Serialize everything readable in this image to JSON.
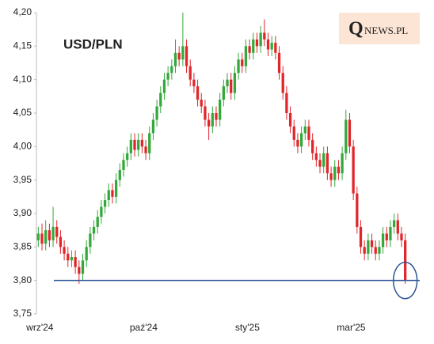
{
  "chart_data": {
    "type": "candlestick",
    "title": "USD/PLN",
    "logo": [
      "Q",
      "NEWS.PL"
    ],
    "categories": [
      "wrz'24",
      null,
      null,
      null,
      null,
      null,
      null,
      null,
      null,
      null,
      null,
      null,
      null,
      null,
      null,
      null,
      null,
      null,
      null,
      null,
      null,
      null,
      null,
      null,
      null,
      null,
      null,
      null,
      "paź'24",
      null,
      null,
      null,
      null,
      null,
      null,
      null,
      null,
      null,
      null,
      null,
      null,
      null,
      null,
      null,
      null,
      null,
      null,
      null,
      null,
      null,
      null,
      null,
      null,
      null,
      null,
      null,
      "sty'25",
      null,
      null,
      null,
      null,
      null,
      null,
      null,
      null,
      null,
      null,
      null,
      null,
      null,
      null,
      null,
      null,
      null,
      null,
      null,
      null,
      null,
      null,
      null,
      null,
      null,
      null,
      null,
      "mar'25",
      null,
      null,
      null,
      null,
      null,
      null,
      null,
      null,
      null,
      null,
      null,
      null,
      null,
      null,
      null
    ],
    "series": [
      {
        "up_color": "#34a83a",
        "down_color": "#e0262b",
        "open": [
          3.86,
          3.87,
          3.855,
          3.875,
          3.86,
          3.88,
          3.865,
          3.85,
          3.84,
          3.83,
          3.835,
          3.82,
          3.81,
          3.83,
          3.85,
          3.87,
          3.88,
          3.895,
          3.91,
          3.92,
          3.935,
          3.925,
          3.95,
          3.965,
          3.98,
          3.99,
          4.01,
          3.995,
          4.01,
          4.0,
          3.99,
          4.02,
          4.04,
          4.06,
          4.08,
          4.1,
          4.11,
          4.12,
          4.14,
          4.13,
          4.15,
          4.12,
          4.1,
          4.09,
          4.07,
          4.06,
          4.04,
          4.03,
          4.05,
          4.04,
          4.07,
          4.09,
          4.1,
          4.08,
          4.11,
          4.13,
          4.12,
          4.15,
          4.14,
          4.16,
          4.15,
          4.17,
          4.16,
          4.145,
          4.155,
          4.14,
          4.11,
          4.08,
          4.05,
          4.03,
          4.01,
          4.0,
          4.02,
          4.03,
          4.01,
          3.99,
          3.98,
          3.97,
          3.99,
          3.96,
          3.95,
          3.97,
          3.96,
          3.99,
          4.04,
          4.0,
          3.93,
          3.88,
          3.85,
          3.84,
          3.86,
          3.85,
          3.84,
          3.85,
          3.87,
          3.86,
          3.88,
          3.89,
          3.87,
          3.86
        ],
        "high": [
          3.88,
          3.885,
          3.89,
          3.885,
          3.91,
          3.89,
          3.875,
          3.86,
          3.85,
          3.845,
          3.845,
          3.83,
          3.84,
          3.86,
          3.88,
          3.89,
          3.905,
          3.92,
          3.93,
          3.945,
          3.945,
          3.96,
          3.975,
          3.99,
          4.0,
          4.02,
          4.02,
          4.02,
          4.02,
          4.01,
          4.03,
          4.05,
          4.07,
          4.09,
          4.11,
          4.12,
          4.13,
          4.16,
          4.15,
          4.2,
          4.16,
          4.13,
          4.11,
          4.1,
          4.08,
          4.07,
          4.05,
          4.06,
          4.06,
          4.08,
          4.1,
          4.11,
          4.11,
          4.12,
          4.14,
          4.14,
          4.16,
          4.16,
          4.17,
          4.17,
          4.18,
          4.19,
          4.17,
          4.165,
          4.165,
          4.15,
          4.12,
          4.09,
          4.06,
          4.04,
          4.02,
          4.03,
          4.04,
          4.04,
          4.02,
          4.0,
          3.99,
          4.0,
          4.0,
          3.97,
          3.98,
          3.98,
          4.0,
          4.055,
          4.05,
          4.01,
          3.94,
          3.89,
          3.86,
          3.87,
          3.87,
          3.86,
          3.86,
          3.88,
          3.88,
          3.89,
          3.9,
          3.9,
          3.88,
          3.87
        ],
        "low": [
          3.85,
          3.845,
          3.845,
          3.85,
          3.85,
          3.855,
          3.84,
          3.83,
          3.82,
          3.82,
          3.81,
          3.795,
          3.8,
          3.82,
          3.84,
          3.86,
          3.87,
          3.885,
          3.9,
          3.91,
          3.915,
          3.915,
          3.94,
          3.955,
          3.97,
          3.98,
          3.985,
          3.985,
          3.99,
          3.98,
          3.98,
          4.01,
          4.03,
          4.05,
          4.07,
          4.09,
          4.1,
          4.11,
          4.12,
          4.12,
          4.11,
          4.09,
          4.08,
          4.06,
          4.05,
          4.03,
          4.01,
          4.02,
          4.03,
          4.03,
          4.06,
          4.08,
          4.07,
          4.07,
          4.1,
          4.11,
          4.11,
          4.13,
          4.13,
          4.14,
          4.14,
          4.15,
          4.135,
          4.135,
          4.13,
          4.1,
          4.07,
          4.04,
          4.02,
          4.0,
          3.99,
          3.99,
          4.01,
          4.0,
          3.98,
          3.97,
          3.96,
          3.96,
          3.95,
          3.94,
          3.94,
          3.95,
          3.95,
          3.98,
          3.99,
          3.92,
          3.87,
          3.84,
          3.83,
          3.83,
          3.84,
          3.83,
          3.83,
          3.84,
          3.85,
          3.85,
          3.87,
          3.86,
          3.85,
          3.795
        ],
        "close": [
          3.87,
          3.855,
          3.875,
          3.86,
          3.88,
          3.865,
          3.85,
          3.84,
          3.83,
          3.835,
          3.82,
          3.81,
          3.83,
          3.85,
          3.87,
          3.88,
          3.895,
          3.91,
          3.92,
          3.935,
          3.925,
          3.95,
          3.965,
          3.98,
          3.99,
          4.01,
          3.995,
          4.01,
          4.0,
          3.99,
          4.02,
          4.04,
          4.06,
          4.08,
          4.1,
          4.11,
          4.12,
          4.14,
          4.13,
          4.15,
          4.12,
          4.1,
          4.09,
          4.07,
          4.06,
          4.04,
          4.03,
          4.05,
          4.04,
          4.07,
          4.09,
          4.1,
          4.08,
          4.11,
          4.13,
          4.12,
          4.15,
          4.14,
          4.16,
          4.15,
          4.17,
          4.16,
          4.145,
          4.155,
          4.14,
          4.11,
          4.08,
          4.05,
          4.03,
          4.01,
          4.0,
          4.02,
          4.03,
          4.01,
          3.99,
          3.98,
          3.97,
          3.99,
          3.96,
          3.95,
          3.97,
          3.96,
          3.99,
          4.04,
          4.0,
          3.93,
          3.88,
          3.85,
          3.84,
          3.86,
          3.85,
          3.84,
          3.85,
          3.87,
          3.86,
          3.88,
          3.89,
          3.87,
          3.86,
          3.8
        ]
      }
    ],
    "ylim": [
      3.75,
      4.2
    ],
    "yticks": [
      {
        "value": 3.75,
        "label": "3,75"
      },
      {
        "value": 3.8,
        "label": "3,80"
      },
      {
        "value": 3.85,
        "label": "3,85"
      },
      {
        "value": 3.9,
        "label": "3,90"
      },
      {
        "value": 3.95,
        "label": "3,95"
      },
      {
        "value": 4.0,
        "label": "4,00"
      },
      {
        "value": 4.05,
        "label": "4,05"
      },
      {
        "value": 4.1,
        "label": "4,10"
      },
      {
        "value": 4.15,
        "label": "4,15"
      },
      {
        "value": 4.2,
        "label": "4,20"
      }
    ],
    "reference_line": {
      "value": 3.8,
      "color": "#2e5597"
    }
  }
}
